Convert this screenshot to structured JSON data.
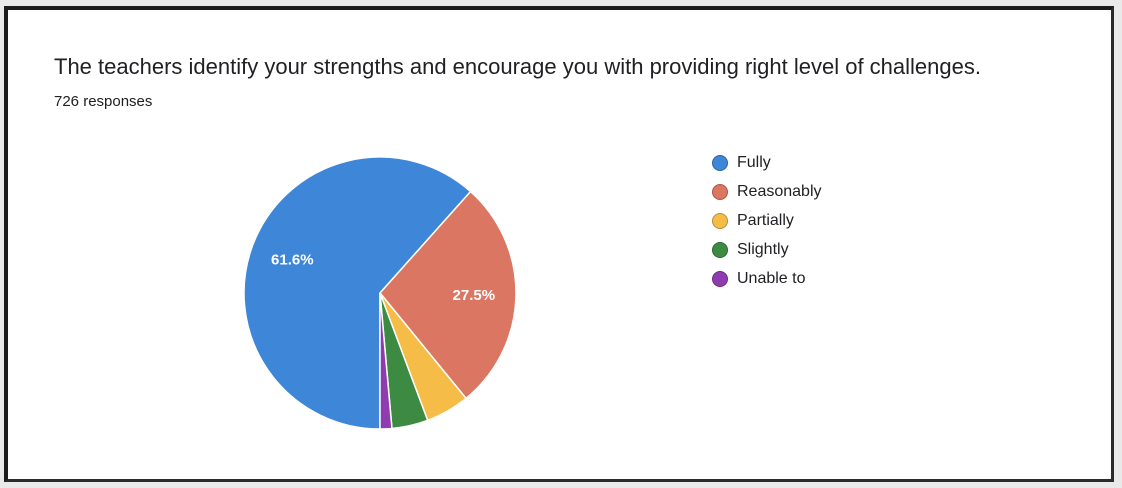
{
  "question": {
    "title": "The teachers identify your strengths and encourage you with providing right level of challenges.",
    "responses": "726 responses"
  },
  "colors": {
    "fully": "#3d86d8",
    "reasonably": "#db7663",
    "partially": "#f5bd48",
    "slightly": "#3d8b43",
    "unable_to": "#8e3cb0"
  },
  "chart_data": {
    "type": "pie",
    "title": "The teachers identify your strengths and encourage you with providing right level of challenges.",
    "subtitle": "726 responses",
    "legend_position": "right",
    "categories": [
      "Fully",
      "Reasonably",
      "Partially",
      "Slightly",
      "Unable to"
    ],
    "values": [
      61.6,
      27.5,
      5.2,
      4.3,
      1.4
    ],
    "labels": [
      "61.6%",
      "27.5%",
      "",
      "",
      ""
    ],
    "colors": [
      "#3d86d8",
      "#db7663",
      "#f5bd48",
      "#3d8b43",
      "#8e3cb0"
    ]
  }
}
